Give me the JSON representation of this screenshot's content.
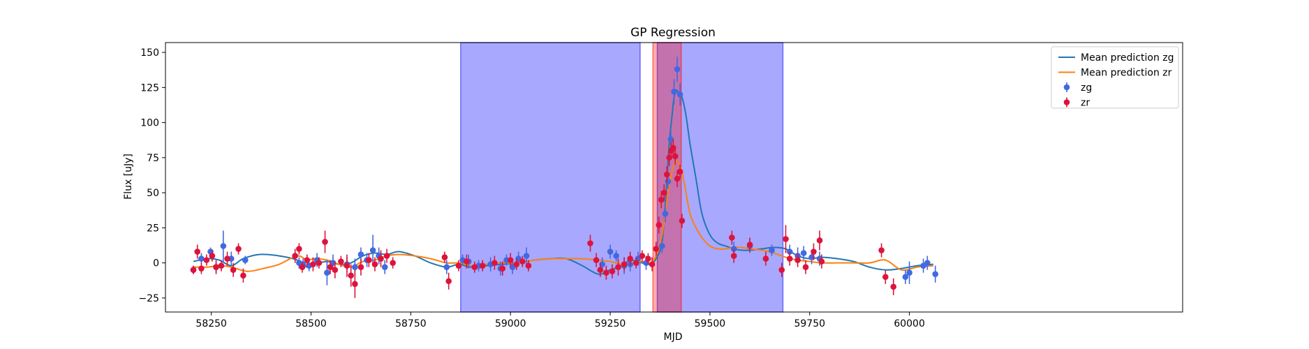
{
  "chart_data": {
    "type": "line",
    "title": "GP Regression",
    "xlabel": "MJD",
    "ylabel": "Flux [uJy]",
    "xlim": [
      58135,
      60685
    ],
    "ylim": [
      -35,
      157
    ],
    "xticks": [
      58250,
      58500,
      58750,
      59000,
      59250,
      59500,
      59750,
      60000
    ],
    "yticks": [
      -25,
      0,
      25,
      50,
      75,
      100,
      125,
      150
    ],
    "legend_position": "upper right",
    "colors": {
      "zg": "#4169e1",
      "zr": "#dc143c",
      "mean_zg": "#1f77b4",
      "mean_zr": "#ff7f0e",
      "span_blue": "#0000ff",
      "span_red": "#ff0000"
    },
    "shaded_regions": [
      {
        "band": "zg",
        "x": [
          58875,
          59325
        ]
      },
      {
        "band": "zg",
        "x": [
          59368,
          59683
        ]
      },
      {
        "band": "zr",
        "x": [
          59357,
          59428
        ]
      }
    ],
    "series": [
      {
        "name": "Mean prediction zg",
        "kind": "line",
        "x": [
          58205,
          58240,
          58270,
          58300,
          58330,
          58370,
          58420,
          58465,
          58490,
          58510,
          58540,
          58570,
          58600,
          58630,
          58660,
          58690,
          58720,
          58760,
          58800,
          58840,
          58870,
          58900,
          58940,
          58980,
          59020,
          59060,
          59100,
          59140,
          59180,
          59220,
          59250,
          59280,
          59300,
          59330,
          59350,
          59365,
          59380,
          59390,
          59398,
          59405,
          59410,
          59415,
          59420,
          59430,
          59440,
          59450,
          59465,
          59480,
          59500,
          59520,
          59540,
          59560,
          59580,
          59600,
          59630,
          59660,
          59690,
          59720,
          59750,
          59780,
          59820,
          59860,
          59900,
          59940,
          59980,
          60020,
          60060
        ],
        "values": [
          1,
          3,
          2,
          -2,
          3,
          6,
          5,
          2,
          -3,
          -1,
          1,
          -1,
          0,
          5,
          7,
          6,
          8,
          5,
          0,
          -3,
          -1,
          -3,
          -2,
          -1,
          0,
          2,
          3,
          3,
          -2,
          -8,
          -5,
          -2,
          2,
          0,
          -1,
          3,
          15,
          50,
          85,
          105,
          118,
          123,
          122,
          118,
          105,
          85,
          60,
          35,
          20,
          14,
          12,
          10,
          9,
          9,
          10,
          11,
          10,
          5,
          3,
          4,
          3,
          1,
          -3,
          -5,
          -4,
          -2,
          -1
        ]
      },
      {
        "name": "Mean prediction zr",
        "kind": "line",
        "x": [
          58205,
          58240,
          58270,
          58300,
          58340,
          58380,
          58420,
          58465,
          58490,
          58510,
          58540,
          58570,
          58600,
          58630,
          58660,
          58690,
          58720,
          58760,
          58800,
          58840,
          58870,
          58900,
          58940,
          58980,
          59020,
          59060,
          59100,
          59140,
          59180,
          59220,
          59250,
          59280,
          59300,
          59330,
          59350,
          59365,
          59380,
          59390,
          59398,
          59405,
          59410,
          59415,
          59420,
          59430,
          59440,
          59450,
          59465,
          59480,
          59500,
          59520,
          59540,
          59560,
          59580,
          59600,
          59630,
          59660,
          59690,
          59720,
          59750,
          59780,
          59820,
          59860,
          59900,
          59940,
          59980,
          60020,
          60060
        ],
        "values": [
          -3,
          -3,
          -2,
          -3,
          -6,
          -4,
          -1,
          5,
          2,
          3,
          2,
          -1,
          -3,
          1,
          2,
          5,
          6,
          5,
          3,
          0,
          0,
          -2,
          -1,
          0,
          0,
          2,
          3,
          3,
          3,
          2,
          1,
          -1,
          0,
          1,
          0,
          5,
          20,
          40,
          55,
          65,
          70,
          72,
          72,
          65,
          50,
          35,
          25,
          18,
          12,
          10,
          10,
          11,
          11,
          10,
          9,
          7,
          4,
          2,
          1,
          0,
          0,
          0,
          0,
          2,
          -5,
          -3,
          -2
        ]
      },
      {
        "name": "zg",
        "kind": "errorbar",
        "x": [
          58205,
          58225,
          58248,
          58262,
          58280,
          58300,
          58335,
          58470,
          58480,
          58495,
          58515,
          58540,
          58555,
          58590,
          58610,
          58625,
          58640,
          58655,
          58670,
          58685,
          58840,
          58880,
          58895,
          58920,
          58950,
          58975,
          58990,
          59005,
          59020,
          59040,
          59230,
          59250,
          59265,
          59285,
          59300,
          59320,
          59340,
          59380,
          59388,
          59395,
          59402,
          59410,
          59418,
          59425,
          59560,
          59600,
          59655,
          59700,
          59720,
          59735,
          59755,
          59775,
          59990,
          60000,
          60035,
          60045,
          60065
        ],
        "values": [
          -5,
          3,
          8,
          -3,
          12,
          3,
          2,
          0,
          -1,
          -2,
          2,
          -7,
          0,
          -1,
          -3,
          6,
          2,
          9,
          5,
          -3,
          -3,
          2,
          1,
          -2,
          -1,
          -4,
          2,
          -3,
          3,
          5,
          -1,
          8,
          5,
          -2,
          -1,
          3,
          0,
          12,
          35,
          58,
          88,
          122,
          138,
          120,
          10,
          12,
          9,
          8,
          5,
          7,
          4,
          3,
          -10,
          -7,
          -2,
          0,
          -8
        ],
        "errors": [
          3,
          4,
          3,
          4,
          11,
          5,
          3,
          4,
          4,
          4,
          5,
          9,
          6,
          5,
          6,
          5,
          5,
          11,
          6,
          5,
          5,
          4,
          5,
          4,
          5,
          5,
          4,
          5,
          5,
          6,
          5,
          5,
          4,
          6,
          5,
          5,
          5,
          5,
          6,
          5,
          6,
          9,
          9,
          8,
          5,
          5,
          4,
          5,
          6,
          5,
          5,
          5,
          5,
          8,
          5,
          5,
          6
        ]
      },
      {
        "name": "zr",
        "kind": "errorbar",
        "x": [
          58205,
          58215,
          58225,
          58238,
          58252,
          58262,
          58275,
          58290,
          58305,
          58318,
          58330,
          58460,
          58470,
          58478,
          58490,
          58505,
          58520,
          58535,
          58548,
          58560,
          58575,
          58590,
          58600,
          58610,
          58625,
          58645,
          58660,
          58675,
          58690,
          58705,
          58835,
          58845,
          58870,
          58890,
          58910,
          58930,
          58960,
          58980,
          59000,
          59015,
          59030,
          59045,
          59200,
          59215,
          59225,
          59240,
          59255,
          59270,
          59285,
          59300,
          59315,
          59330,
          59345,
          59355,
          59365,
          59372,
          59378,
          59385,
          59392,
          59398,
          59403,
          59408,
          59413,
          59418,
          59425,
          59430,
          59555,
          59560,
          59600,
          59640,
          59680,
          59690,
          59700,
          59720,
          59740,
          59760,
          59775,
          59780,
          59930,
          59940,
          59960
        ],
        "values": [
          -5,
          8,
          -4,
          2,
          5,
          -3,
          -2,
          3,
          -5,
          10,
          -9,
          5,
          10,
          -3,
          2,
          -1,
          0,
          15,
          -3,
          -5,
          1,
          -2,
          -9,
          -15,
          -3,
          2,
          -1,
          3,
          5,
          0,
          4,
          -13,
          -2,
          1,
          -3,
          -2,
          0,
          -4,
          2,
          -1,
          1,
          -2,
          14,
          2,
          -5,
          -7,
          -6,
          -3,
          -1,
          3,
          0,
          5,
          3,
          -1,
          10,
          27,
          45,
          50,
          63,
          75,
          80,
          82,
          76,
          60,
          65,
          30,
          18,
          5,
          13,
          3,
          -5,
          17,
          3,
          2,
          -3,
          8,
          16,
          1,
          9,
          -10,
          -17
        ],
        "errors": [
          3,
          5,
          4,
          4,
          4,
          5,
          4,
          5,
          5,
          4,
          5,
          5,
          4,
          4,
          4,
          5,
          4,
          8,
          5,
          6,
          4,
          8,
          8,
          10,
          6,
          5,
          5,
          6,
          5,
          4,
          4,
          6,
          4,
          5,
          4,
          4,
          5,
          5,
          5,
          4,
          4,
          4,
          6,
          5,
          5,
          5,
          5,
          6,
          5,
          5,
          4,
          4,
          4,
          5,
          5,
          6,
          6,
          6,
          6,
          6,
          6,
          6,
          6,
          6,
          5,
          5,
          5,
          5,
          5,
          5,
          5,
          10,
          5,
          5,
          5,
          6,
          7,
          5,
          5,
          5,
          6
        ]
      }
    ]
  }
}
